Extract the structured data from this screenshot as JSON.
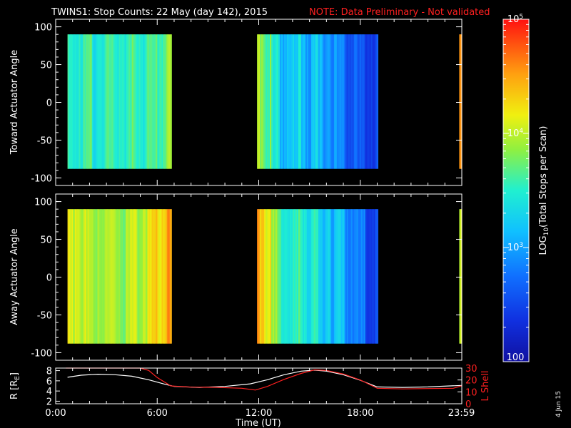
{
  "title": {
    "main": "TWINS1: Stop Counts: 22 May (day 142), 2015",
    "note": "NOTE: Data Preliminary - Not validated",
    "note_color": "#ff2020"
  },
  "stamp": "4 Jun 15",
  "colors": {
    "background": "#000000",
    "axes": "#ffffff",
    "r_line": "#ffffff",
    "l_shell_line": "#ff2020"
  },
  "colorbar": {
    "label": "LOG10(Total Stops per Scan)",
    "label_prefix": "LOG",
    "label_sub": "10",
    "label_suffix": "(Total Stops per Scan)",
    "scale": "log",
    "min": 100,
    "max": 100000,
    "ticks": [
      {
        "value": 100,
        "base": "100",
        "exp": ""
      },
      {
        "value": 1000,
        "base": "10",
        "exp": "3"
      },
      {
        "value": 10000,
        "base": "10",
        "exp": "4"
      },
      {
        "value": 100000,
        "base": "10",
        "exp": "5"
      }
    ]
  },
  "chart_data": [
    {
      "type": "heatmap",
      "ylabel": "Toward Actuator Angle",
      "ylim": [
        -110,
        110
      ],
      "yticks": [
        "100",
        "50",
        "0",
        "-50",
        "-100"
      ],
      "xlim": [
        0,
        24
      ],
      "angle_range": [
        -88,
        90
      ],
      "blocks": [
        {
          "start_hour": 0.7,
          "end_hour": 6.85,
          "level_log10": [
            3.6,
            3.7,
            3.6,
            3.75,
            3.55,
            3.7,
            3.65,
            3.6,
            3.7,
            3.65,
            3.6,
            3.7,
            3.75,
            3.65,
            3.6,
            3.7,
            3.8,
            3.95
          ]
        },
        {
          "start_hour": 11.9,
          "end_hour": 19.05,
          "level_log10": [
            4.05,
            3.8,
            3.45,
            3.3,
            3.35,
            3.25,
            3.4,
            3.2,
            3.3,
            3.1,
            3.15,
            2.95,
            2.9,
            2.8,
            2.7,
            2.65,
            2.6,
            2.55
          ]
        },
        {
          "start_hour": 23.85,
          "end_hour": 24.0,
          "level_log10": [
            4.7
          ]
        }
      ]
    },
    {
      "type": "heatmap",
      "ylabel": "Away Actuator Angle",
      "ylim": [
        -110,
        110
      ],
      "yticks": [
        "100",
        "50",
        "0",
        "-50",
        "-100"
      ],
      "xlim": [
        0,
        24
      ],
      "angle_range": [
        -88,
        90
      ],
      "blocks": [
        {
          "start_hour": 0.7,
          "end_hour": 6.85,
          "level_log10": [
            4.15,
            4.35,
            4.1,
            4.0,
            4.05,
            4.1,
            3.95,
            4.05,
            4.1,
            4.0,
            4.05,
            4.15,
            4.1,
            4.2,
            4.25,
            4.35,
            4.45,
            4.55
          ]
        },
        {
          "start_hour": 11.9,
          "end_hour": 19.05,
          "level_log10": [
            4.5,
            4.3,
            3.9,
            3.7,
            3.6,
            3.5,
            3.65,
            3.55,
            3.6,
            3.3,
            3.45,
            3.2,
            3.25,
            3.05,
            2.95,
            2.85,
            2.7,
            2.65
          ]
        },
        {
          "start_hour": 23.85,
          "end_hour": 24.0,
          "level_log10": [
            4.3
          ]
        }
      ]
    },
    {
      "type": "line",
      "xlabel": "Time (UT)",
      "xticks": [
        "0:00",
        "6:00",
        "12:00",
        "18:00",
        "23:59"
      ],
      "xtick_hours": [
        0,
        6,
        12,
        18,
        23.98
      ],
      "xlim": [
        0,
        24
      ],
      "ylabel_left": "R [RE]",
      "ylabel_left_main": "R [R",
      "ylabel_left_sub": "E",
      "ylabel_left_end": "]",
      "ylim_left": [
        1.5,
        8.5
      ],
      "yticks_left": [
        "2",
        "4",
        "6",
        "8"
      ],
      "ylabel_right": "L Shell",
      "ylim_right": [
        0,
        30
      ],
      "yticks_right": [
        "0",
        "10",
        "20",
        "30"
      ],
      "series": [
        {
          "axis": "left",
          "x": [
            0.7,
            1.5,
            2.5,
            3.5,
            4.5,
            5.5,
            6.5,
            7.0,
            8.5,
            10,
            11.5,
            12.5,
            13.5,
            14.5,
            15.3,
            16.0,
            17.0,
            18.0,
            19.0,
            20.5,
            22,
            23.98
          ],
          "y": [
            6.7,
            7.1,
            7.3,
            7.2,
            6.9,
            6.2,
            5.3,
            4.9,
            4.7,
            4.9,
            5.4,
            6.2,
            7.2,
            7.9,
            8.1,
            7.9,
            7.2,
            6.1,
            4.8,
            4.7,
            4.8,
            5.1
          ]
        },
        {
          "axis": "right",
          "x": [
            0.6,
            0.8,
            5.0,
            5.5,
            6.0,
            6.8,
            8.0,
            9.5,
            11.0,
            11.8,
            12.5,
            13.5,
            14.5,
            15.3,
            16.0,
            17.0,
            18.0,
            19.0,
            20.5,
            22,
            23.5,
            23.98
          ],
          "y": [
            30,
            30,
            30,
            28,
            22,
            15,
            14,
            13.8,
            13,
            11.5,
            14.5,
            20.5,
            25.5,
            28.5,
            28,
            25,
            20,
            13,
            12.5,
            12.8,
            13,
            15
          ]
        }
      ]
    }
  ]
}
